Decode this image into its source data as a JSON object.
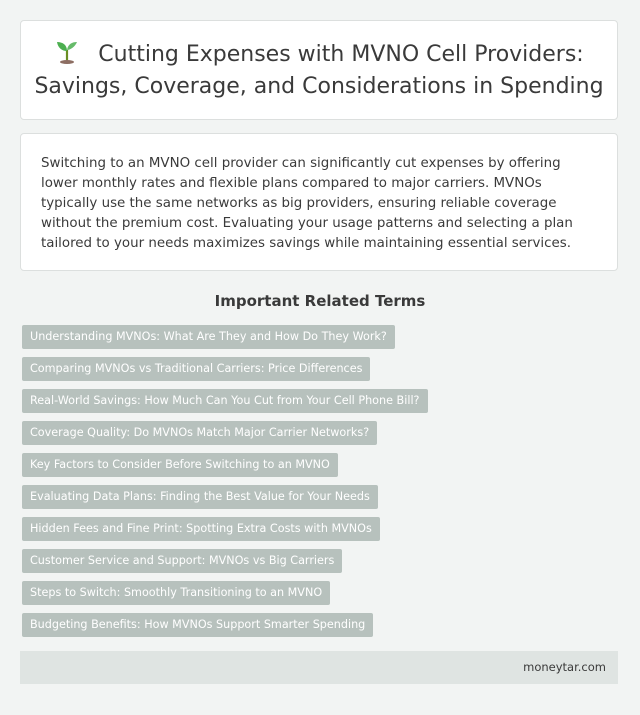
{
  "header": {
    "icon": "seedling-icon",
    "title": "Cutting Expenses with MVNO Cell Providers: Savings, Coverage, and Considerations in Spending"
  },
  "summary": {
    "text": "Switching to an MVNO cell provider can significantly cut expenses by offering lower monthly rates and flexible plans compared to major carriers. MVNOs typically use the same networks as big providers, ensuring reliable coverage without the premium cost. Evaluating your usage patterns and selecting a plan tailored to your needs maximizes savings while maintaining essential services."
  },
  "related": {
    "heading": "Important Related Terms",
    "terms": [
      {
        "label": "Understanding MVNOs: What Are They and How Do They Work?"
      },
      {
        "label": "Comparing MVNOs vs Traditional Carriers: Price Differences"
      },
      {
        "label": "Real-World Savings: How Much Can You Cut from Your Cell Phone Bill?"
      },
      {
        "label": "Coverage Quality: Do MVNOs Match Major Carrier Networks?"
      },
      {
        "label": "Key Factors to Consider Before Switching to an MVNO"
      },
      {
        "label": "Evaluating Data Plans: Finding the Best Value for Your Needs"
      },
      {
        "label": "Hidden Fees and Fine Print: Spotting Extra Costs with MVNOs"
      },
      {
        "label": "Customer Service and Support: MVNOs vs Big Carriers"
      },
      {
        "label": "Steps to Switch: Smoothly Transitioning to an MVNO"
      },
      {
        "label": "Budgeting Benefits: How MVNOs Support Smarter Spending"
      }
    ]
  },
  "footer": {
    "site": "moneytar.com"
  },
  "colors": {
    "background": "#f2f4f3",
    "card": "#ffffff",
    "tag": "#b7c1bd",
    "footer": "#dfe4e2",
    "text": "#3a3a3a"
  }
}
